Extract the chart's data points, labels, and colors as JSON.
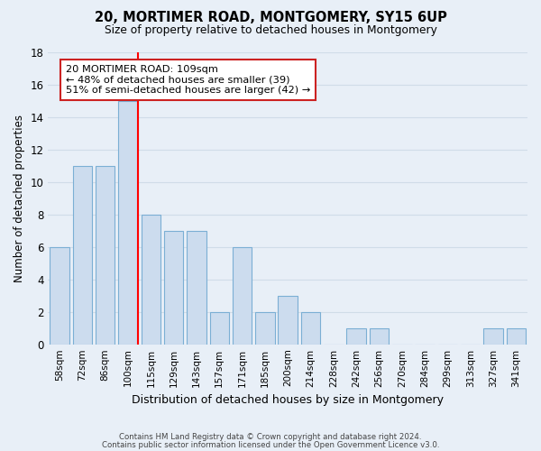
{
  "title": "20, MORTIMER ROAD, MONTGOMERY, SY15 6UP",
  "subtitle": "Size of property relative to detached houses in Montgomery",
  "xlabel": "Distribution of detached houses by size in Montgomery",
  "ylabel": "Number of detached properties",
  "bar_labels": [
    "58sqm",
    "72sqm",
    "86sqm",
    "100sqm",
    "115sqm",
    "129sqm",
    "143sqm",
    "157sqm",
    "171sqm",
    "185sqm",
    "200sqm",
    "214sqm",
    "228sqm",
    "242sqm",
    "256sqm",
    "270sqm",
    "284sqm",
    "299sqm",
    "313sqm",
    "327sqm",
    "341sqm"
  ],
  "bar_values": [
    6,
    11,
    11,
    15,
    8,
    7,
    7,
    2,
    6,
    2,
    3,
    2,
    0,
    1,
    1,
    0,
    0,
    0,
    0,
    1,
    1
  ],
  "bar_color": "#ccdcee",
  "bar_edge_color": "#7bafd4",
  "grid_color": "#d0dce8",
  "bg_color": "#e8eff7",
  "redline_x": 3.42,
  "ylim": [
    0,
    18
  ],
  "yticks": [
    0,
    2,
    4,
    6,
    8,
    10,
    12,
    14,
    16,
    18
  ],
  "annotation_title": "20 MORTIMER ROAD: 109sqm",
  "annotation_line1": "← 48% of detached houses are smaller (39)",
  "annotation_line2": "51% of semi-detached houses are larger (42) →",
  "footer1": "Contains HM Land Registry data © Crown copyright and database right 2024.",
  "footer2": "Contains public sector information licensed under the Open Government Licence v3.0."
}
